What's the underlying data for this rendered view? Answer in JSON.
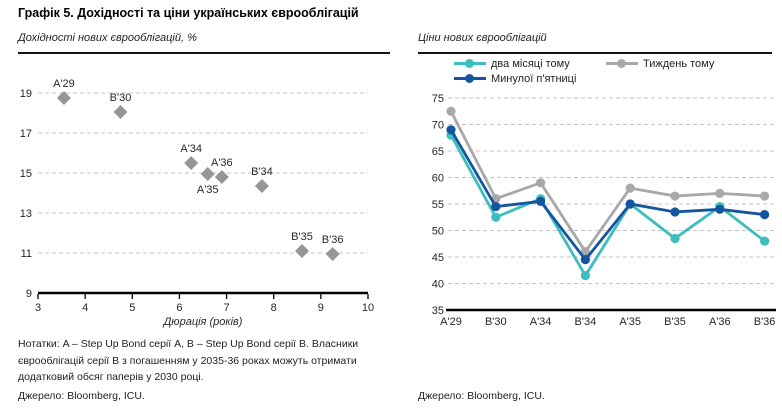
{
  "page": {
    "title": "Графік 5. Дохідності та ціни українських єврооблігацій"
  },
  "left_panel": {
    "subtitle": "Дохідності нових єврооблігацій, %",
    "notes": "Нотатки: A – Step Up Bond серії A, B – Step Up Bond серії B. Власники єврооблігацій серії B з погашенням у 2035-36 роках можуть отримати додатковий обсяг паперів у 2030 році.",
    "source": "Джерело: Bloomberg, ICU."
  },
  "right_panel": {
    "subtitle": "Ціни нових єврооблігацій",
    "source": "Джерело: Bloomberg, ICU."
  },
  "colors": {
    "scatter_marker": "#969696",
    "series_two_months": "#3cbebe",
    "series_week_ago": "#a8a8a8",
    "series_last_friday": "#1455a0",
    "gridline": "#c6c6c6",
    "axis": "#000000",
    "text": "#262626"
  },
  "chart_data": [
    {
      "type": "scatter",
      "title": "Дохідності нових єврооблігацій, %",
      "xlabel": "Дюрація (років)",
      "ylabel": "",
      "xlim": [
        3,
        10
      ],
      "ylim": [
        9,
        19
      ],
      "x_ticks": [
        3,
        4,
        5,
        6,
        7,
        8,
        9,
        10
      ],
      "y_ticks": [
        9,
        11,
        13,
        15,
        17,
        19
      ],
      "grid": "horizontal-dashed",
      "points": [
        {
          "label": "A'29",
          "x": 3.55,
          "y": 18.75,
          "label_pos": "above"
        },
        {
          "label": "B'30",
          "x": 4.75,
          "y": 18.05,
          "label_pos": "above"
        },
        {
          "label": "A'34",
          "x": 6.25,
          "y": 15.5,
          "label_pos": "above"
        },
        {
          "label": "A'35",
          "x": 6.6,
          "y": 14.95,
          "label_pos": "below"
        },
        {
          "label": "A'36",
          "x": 6.9,
          "y": 14.8,
          "label_pos": "above"
        },
        {
          "label": "B'34",
          "x": 7.75,
          "y": 14.35,
          "label_pos": "above"
        },
        {
          "label": "B'35",
          "x": 8.6,
          "y": 11.1,
          "label_pos": "above"
        },
        {
          "label": "B'36",
          "x": 9.25,
          "y": 10.95,
          "label_pos": "above"
        }
      ]
    },
    {
      "type": "line",
      "title": "Ціни нових єврооблігацій",
      "categories": [
        "A'29",
        "B'30",
        "A'34",
        "B'34",
        "A'35",
        "B'35",
        "A'36",
        "B'36"
      ],
      "ylim": [
        35,
        75
      ],
      "y_ticks": [
        35,
        40,
        45,
        50,
        55,
        60,
        65,
        70,
        75
      ],
      "grid": "horizontal-dashed",
      "legend_position": "top",
      "series": [
        {
          "name": "два місяці тому",
          "color_key": "series_two_months",
          "values": [
            68,
            52.5,
            56,
            41.5,
            55,
            48.5,
            54.5,
            48
          ]
        },
        {
          "name": "Тиждень тому",
          "color_key": "series_week_ago",
          "values": [
            72.5,
            56,
            59,
            46,
            58,
            56.5,
            57,
            56.5
          ]
        },
        {
          "name": "Минулої п'ятниці",
          "color_key": "series_last_friday",
          "values": [
            69,
            54.5,
            55.5,
            44.5,
            55,
            53.5,
            54,
            53
          ]
        }
      ]
    }
  ]
}
